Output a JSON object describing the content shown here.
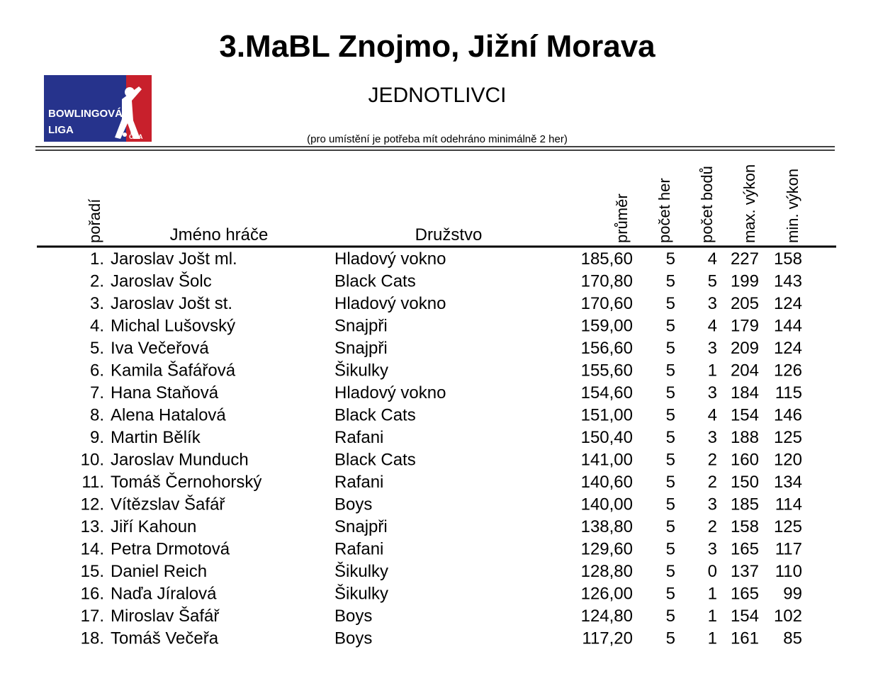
{
  "header": {
    "title": "3.MaBL Znojmo, Jižní Morava",
    "subtitle": "JEDNOTLIVCI",
    "note": "(pro umístění je potřeba mít odehráno minimálně 2 her)"
  },
  "logo": {
    "line1": "BOWLINGOVÁ",
    "line2": "LIGA",
    "badge": "ČBA"
  },
  "table": {
    "columns": [
      "pořadí",
      "Jméno hráče",
      "Družstvo",
      "průměr",
      "počet her",
      "počet bodů",
      "max. výkon",
      "min. výkon"
    ],
    "rows": [
      [
        "1.",
        "Jaroslav Jošt ml.",
        "Hladový vokno",
        "185,60",
        "5",
        "4",
        "227",
        "158"
      ],
      [
        "2.",
        "Jaroslav Šolc",
        "Black Cats",
        "170,80",
        "5",
        "5",
        "199",
        "143"
      ],
      [
        "3.",
        "Jaroslav Jošt st.",
        "Hladový vokno",
        "170,60",
        "5",
        "3",
        "205",
        "124"
      ],
      [
        "4.",
        "Michal Lušovský",
        "Snajpři",
        "159,00",
        "5",
        "4",
        "179",
        "144"
      ],
      [
        "5.",
        "Iva Večeřová",
        "Snajpři",
        "156,60",
        "5",
        "3",
        "209",
        "124"
      ],
      [
        "6.",
        "Kamila Šafářová",
        "Šikulky",
        "155,60",
        "5",
        "1",
        "204",
        "126"
      ],
      [
        "7.",
        "Hana Staňová",
        "Hladový vokno",
        "154,60",
        "5",
        "3",
        "184",
        "115"
      ],
      [
        "8.",
        "Alena Hatalová",
        "Black Cats",
        "151,00",
        "5",
        "4",
        "154",
        "146"
      ],
      [
        "9.",
        "Martin Bělík",
        "Rafani",
        "150,40",
        "5",
        "3",
        "188",
        "125"
      ],
      [
        "10.",
        "Jaroslav Munduch",
        "Black Cats",
        "141,00",
        "5",
        "2",
        "160",
        "120"
      ],
      [
        "11.",
        "Tomáš Černohorský",
        "Rafani",
        "140,60",
        "5",
        "2",
        "150",
        "134"
      ],
      [
        "12.",
        "Vítězslav Šafář",
        "Boys",
        "140,00",
        "5",
        "3",
        "185",
        "114"
      ],
      [
        "13.",
        "Jiří Kahoun",
        "Snajpři",
        "138,80",
        "5",
        "2",
        "158",
        "125"
      ],
      [
        "14.",
        "Petra Drmotová",
        "Rafani",
        "129,60",
        "5",
        "3",
        "165",
        "117"
      ],
      [
        "15.",
        "Daniel Reich",
        "Šikulky",
        "128,80",
        "5",
        "0",
        "137",
        "110"
      ],
      [
        "16.",
        "Naďa Jíralová",
        "Šikulky",
        "126,00",
        "5",
        "1",
        "165",
        "99"
      ],
      [
        "17.",
        "Miroslav Šafář",
        "Boys",
        "124,80",
        "5",
        "1",
        "154",
        "102"
      ],
      [
        "18.",
        "Tomáš Večeřa",
        "Boys",
        "117,20",
        "5",
        "1",
        "161",
        "85"
      ]
    ]
  }
}
